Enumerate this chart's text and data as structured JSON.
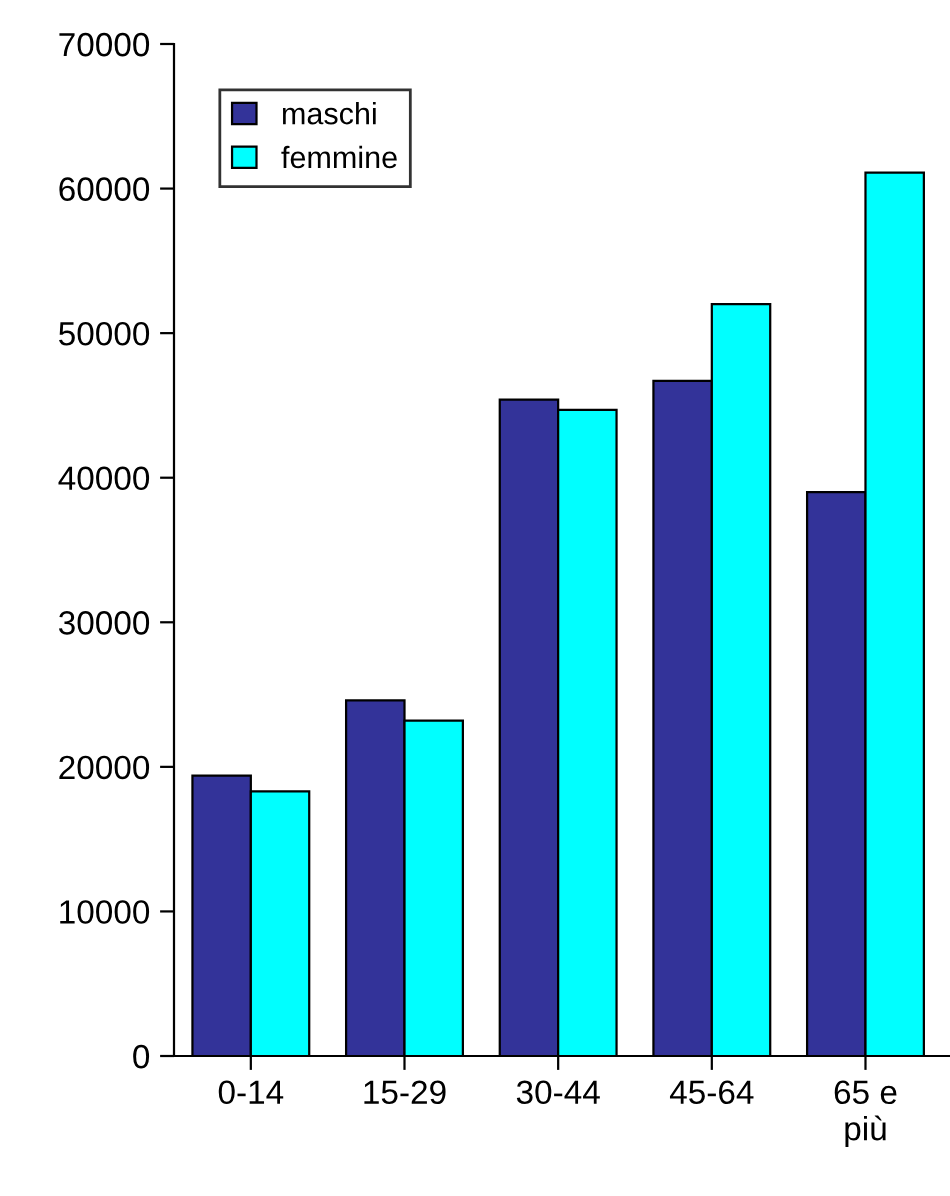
{
  "chart_data": {
    "type": "bar",
    "categories": [
      "0-14",
      "15-29",
      "30-44",
      "45-64",
      "65 e\npiù"
    ],
    "series": [
      {
        "name": "maschi",
        "color": "#333399",
        "values": [
          19400,
          24600,
          45400,
          46700,
          39000
        ]
      },
      {
        "name": "femmine",
        "color": "#00ffff",
        "values": [
          18300,
          23200,
          44700,
          52000,
          61100
        ]
      }
    ],
    "ylim": [
      0,
      70000
    ],
    "yticks": [
      0,
      10000,
      20000,
      30000,
      40000,
      50000,
      60000,
      70000
    ],
    "grid": false,
    "legend": "top left"
  }
}
